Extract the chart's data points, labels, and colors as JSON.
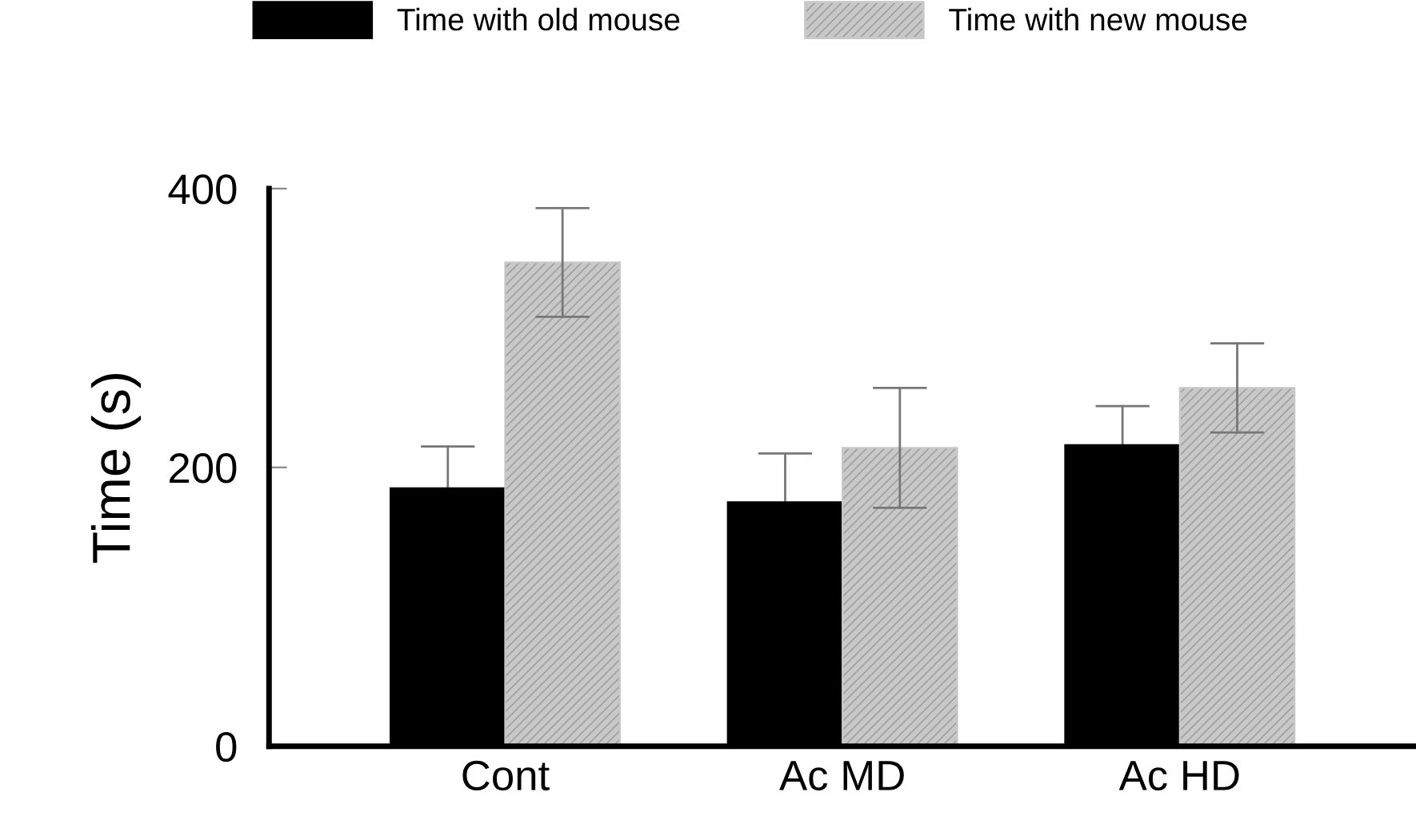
{
  "chart_data": {
    "type": "bar",
    "ylabel": "Time (s)",
    "categories": [
      "Cont",
      "Ac MD",
      "Ac HD"
    ],
    "series": [
      {
        "name": "Time with old mouse",
        "color": "#000000",
        "values": [
          185,
          175,
          216
        ],
        "errors": [
          30,
          35,
          28
        ]
      },
      {
        "name": "Time with new mouse",
        "color": "#c8c8c8",
        "values": [
          347,
          214,
          257
        ],
        "errors": [
          39,
          43,
          32
        ]
      }
    ],
    "ylim": [
      0,
      400
    ],
    "yticks": [
      0,
      200,
      400
    ],
    "grid": false,
    "legend": "top"
  }
}
